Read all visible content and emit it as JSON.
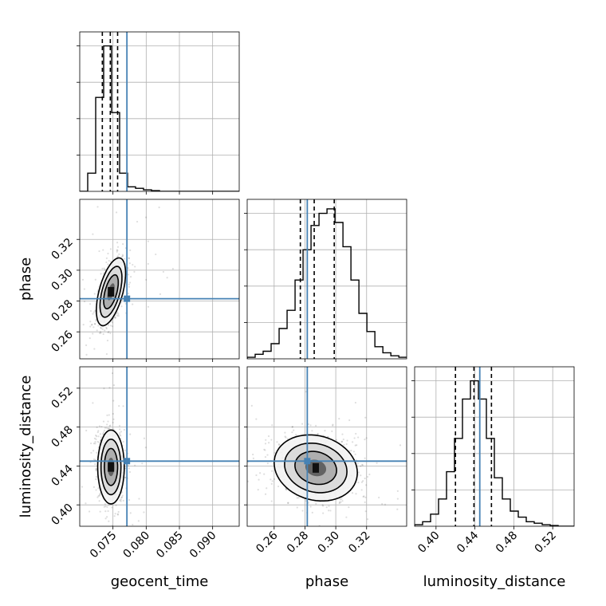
{
  "chart_data": {
    "type": "corner",
    "parameters": [
      "geocent_time",
      "phase",
      "luminosity_distance"
    ],
    "truths": [
      0.0771,
      0.2815,
      0.445
    ],
    "truth_color": "#4682b4",
    "hist_color": "#000000",
    "ranges": [
      [
        0.07,
        0.094
      ],
      [
        0.2425,
        0.346
      ],
      [
        0.378,
        0.542
      ]
    ],
    "ticks": [
      [
        0.075,
        0.08,
        0.085,
        0.09
      ],
      [
        0.26,
        0.28,
        0.3,
        0.32
      ],
      [
        0.4,
        0.44,
        0.48,
        0.52
      ]
    ],
    "tick_labels": [
      [
        "0.075",
        "0.080",
        "0.085",
        "0.090"
      ],
      [
        "0.26",
        "0.28",
        "0.30",
        "0.32"
      ],
      [
        "0.40",
        "0.44",
        "0.48",
        "0.52"
      ]
    ],
    "quantiles": [
      [
        0.0734,
        0.0746,
        0.0757
      ],
      [
        0.277,
        0.286,
        0.299
      ],
      [
        0.42,
        0.439,
        0.457
      ]
    ],
    "histograms": [
      {
        "edges_start": 0.07,
        "bin_width": 0.0012,
        "counts": [
          0,
          0.12,
          0.62,
          0.96,
          0.52,
          0.12,
          0.03,
          0.02,
          0.01,
          0.005,
          0,
          0,
          0,
          0,
          0,
          0,
          0,
          0,
          0,
          0
        ]
      },
      {
        "edges_start": 0.2425,
        "bin_width": 0.00518,
        "counts": [
          0.01,
          0.03,
          0.05,
          0.1,
          0.2,
          0.32,
          0.52,
          0.72,
          0.88,
          0.96,
          0.99,
          0.9,
          0.74,
          0.52,
          0.3,
          0.18,
          0.08,
          0.04,
          0.02,
          0.01
        ]
      },
      {
        "edges_start": 0.378,
        "bin_width": 0.0082,
        "counts": [
          0.01,
          0.03,
          0.08,
          0.18,
          0.36,
          0.58,
          0.84,
          0.96,
          0.84,
          0.58,
          0.32,
          0.18,
          0.1,
          0.06,
          0.03,
          0.02,
          0.01,
          0.005,
          0,
          0
        ]
      }
    ],
    "contours_2d": [
      {
        "x_param": "geocent_time",
        "y_param": "phase",
        "center": [
          0.0747,
          0.286
        ],
        "sigma": [
          0.0011,
          0.011
        ],
        "corr": 0.55
      },
      {
        "x_param": "geocent_time",
        "y_param": "luminosity_distance",
        "center": [
          0.0747,
          0.439
        ],
        "sigma": [
          0.001,
          0.019
        ],
        "corr": 0.0
      },
      {
        "x_param": "phase",
        "y_param": "luminosity_distance",
        "center": [
          0.287,
          0.438
        ],
        "sigma": [
          0.0135,
          0.017
        ],
        "corr": -0.15
      }
    ],
    "contour_levels_sigma": [
      0.5,
      1.0,
      1.5,
      2.0
    ],
    "grid": true
  }
}
